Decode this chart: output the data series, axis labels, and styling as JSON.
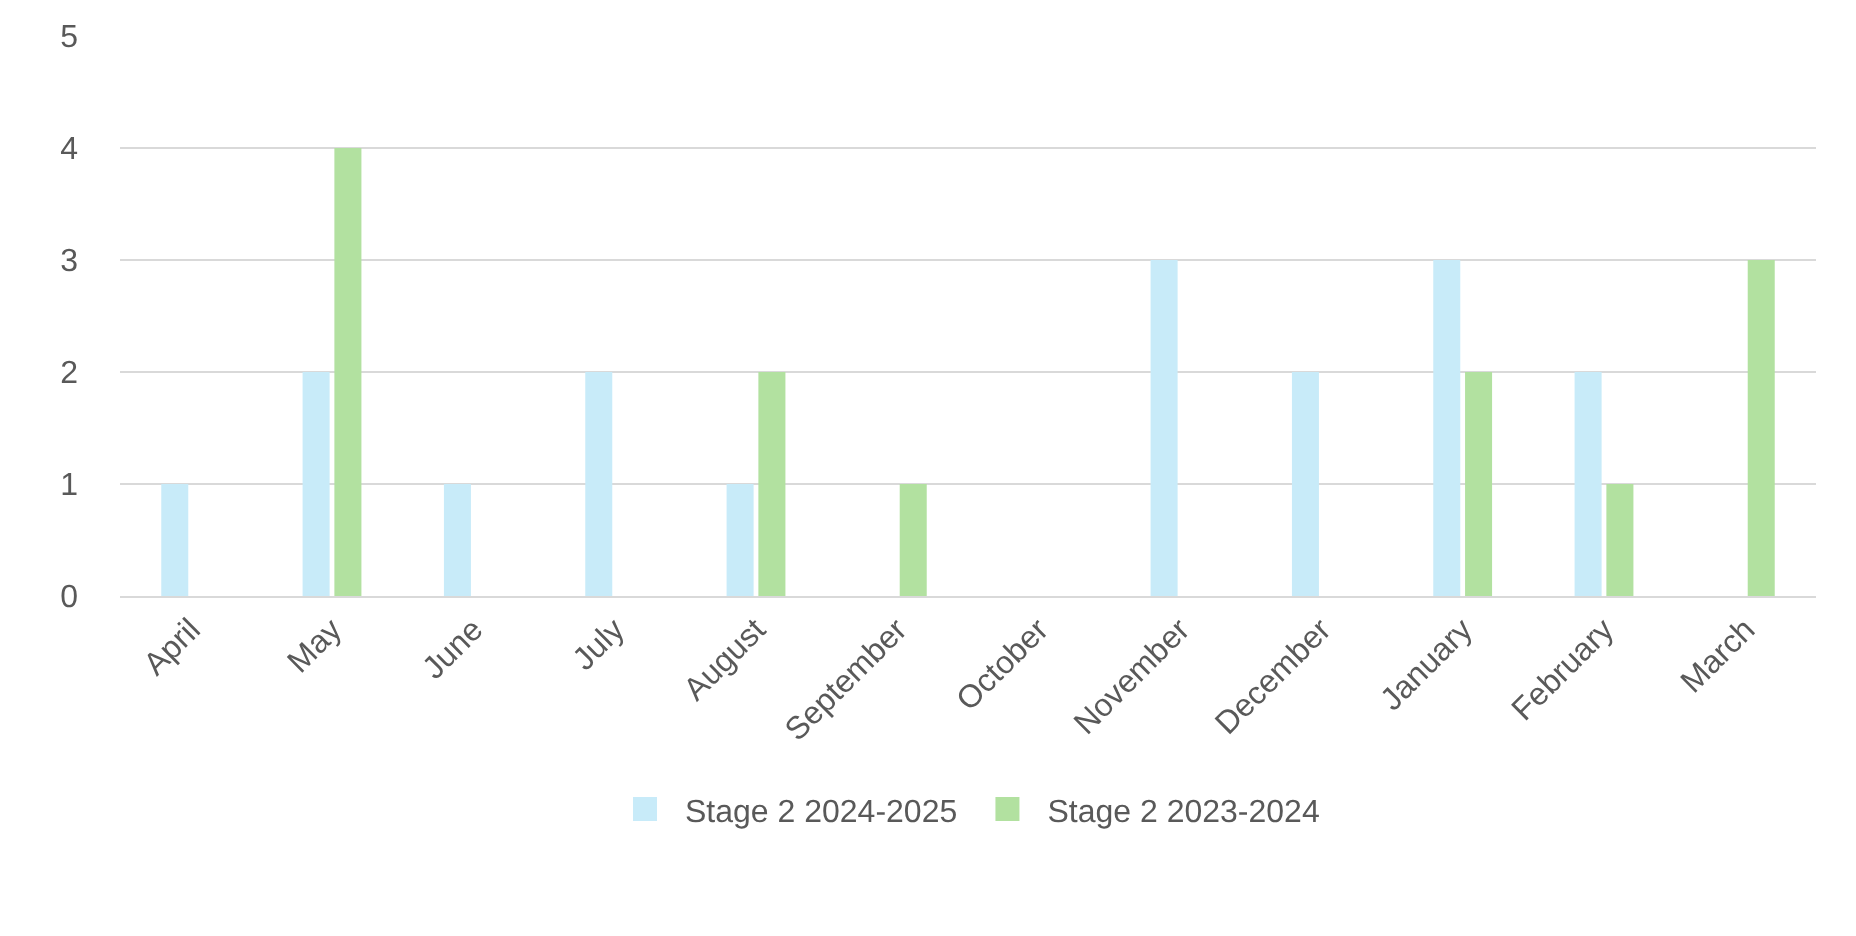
{
  "chart_data": {
    "type": "bar",
    "categories": [
      "April",
      "May",
      "June",
      "July",
      "August",
      "September",
      "October",
      "November",
      "December",
      "January",
      "February",
      "March"
    ],
    "series": [
      {
        "name": "Stage 2 2024-2025",
        "color": "#c8ebf9",
        "values": [
          1,
          2,
          1,
          2,
          1,
          0,
          0,
          3,
          2,
          3,
          2,
          0
        ]
      },
      {
        "name": "Stage 2 2023-2024",
        "color": "#b2e1a0",
        "values": [
          0,
          4,
          0,
          0,
          2,
          1,
          0,
          0,
          0,
          2,
          1,
          3
        ]
      }
    ],
    "ylim": [
      0,
      5
    ],
    "yticks": [
      0,
      1,
      2,
      3,
      4,
      5
    ],
    "grid": "y",
    "legend": "bottom"
  }
}
